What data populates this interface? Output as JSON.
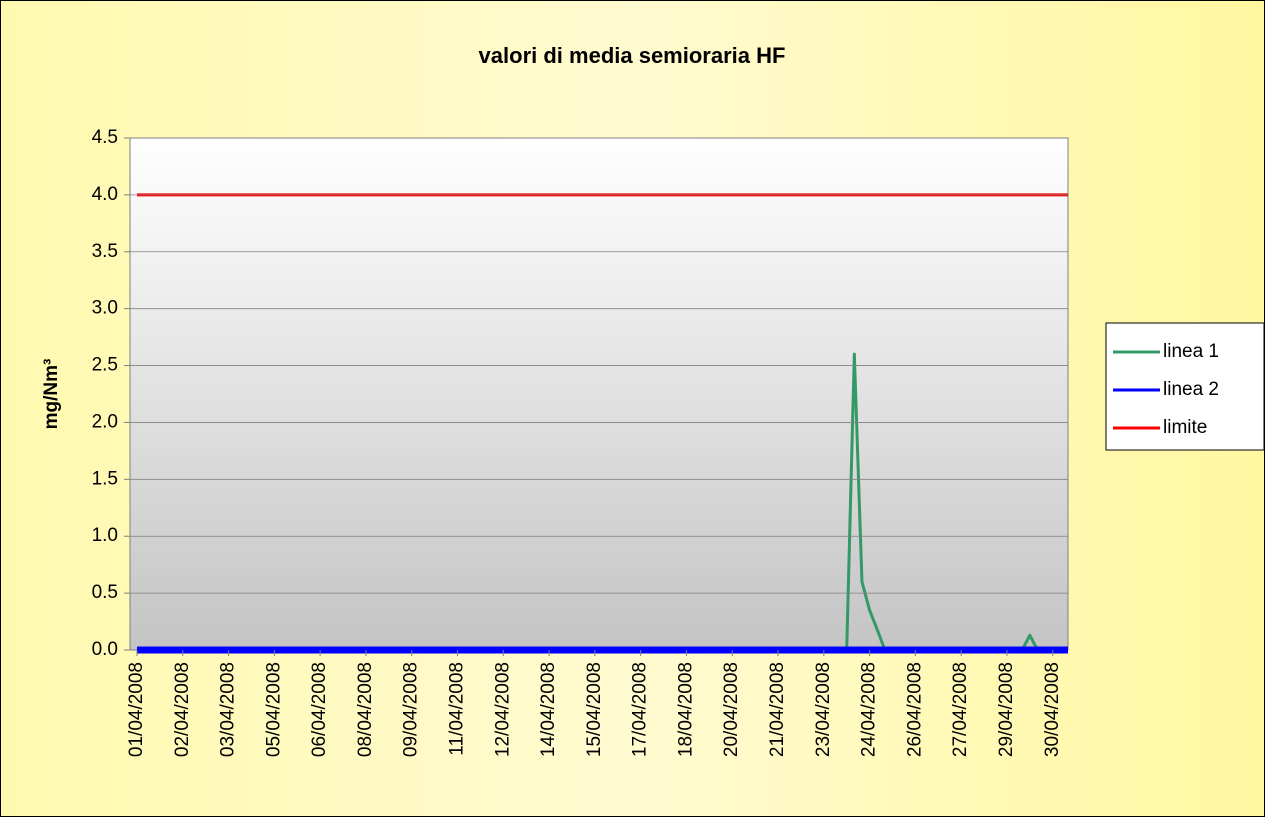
{
  "chart_data": {
    "type": "line",
    "title": "valori di media semioraria HF",
    "y_label": "mg/Nm³",
    "categories": [
      "01/04/2008",
      null,
      null,
      null,
      null,
      null,
      "02/04/2008",
      null,
      null,
      null,
      null,
      null,
      "03/04/2008",
      null,
      null,
      null,
      null,
      null,
      "05/04/2008",
      null,
      null,
      null,
      null,
      null,
      "06/04/2008",
      null,
      null,
      null,
      null,
      null,
      "08/04/2008",
      null,
      null,
      null,
      null,
      null,
      "09/04/2008",
      null,
      null,
      null,
      null,
      null,
      "11/04/2008",
      null,
      null,
      null,
      null,
      null,
      "12/04/2008",
      null,
      null,
      null,
      null,
      null,
      "14/04/2008",
      null,
      null,
      null,
      null,
      null,
      "15/04/2008",
      null,
      null,
      null,
      null,
      null,
      "17/04/2008",
      null,
      null,
      null,
      null,
      null,
      "18/04/2008",
      null,
      null,
      null,
      null,
      null,
      "20/04/2008",
      null,
      null,
      null,
      null,
      null,
      "21/04/2008",
      null,
      null,
      null,
      null,
      null,
      "23/04/2008",
      null,
      null,
      null,
      null,
      null,
      "24/04/2008",
      null,
      null,
      null,
      null,
      null,
      "26/04/2008",
      null,
      null,
      null,
      null,
      null,
      "27/04/2008",
      null,
      null,
      null,
      null,
      null,
      "29/04/2008",
      null,
      null,
      null,
      null,
      null,
      "30/04/2008",
      null,
      null
    ],
    "series": [
      {
        "name": "linea 1",
        "color": "#339966",
        "values": [
          0,
          0,
          0,
          0,
          0,
          0,
          0,
          0,
          0,
          0,
          0,
          0,
          0,
          0,
          0,
          0,
          0,
          0,
          0,
          0,
          0,
          0,
          0,
          0,
          0,
          0,
          0,
          0,
          0,
          0,
          0,
          0,
          0,
          0,
          0,
          0,
          0,
          0,
          0,
          0,
          0,
          0,
          0,
          0,
          0,
          0,
          0,
          0,
          0,
          0,
          0,
          0,
          0,
          0,
          0,
          0,
          0,
          0,
          0,
          0,
          0,
          0,
          0,
          0,
          0,
          0,
          0,
          0,
          0,
          0,
          0,
          0,
          0,
          0,
          0,
          0,
          0,
          0,
          0,
          0,
          0,
          0,
          0,
          0,
          0,
          0,
          0,
          0,
          0,
          0,
          0,
          0,
          0,
          0,
          2.6,
          0.6,
          0.35,
          0.18,
          0,
          0,
          0,
          0,
          0,
          0,
          0,
          0,
          0,
          0,
          0,
          0,
          0,
          0,
          0,
          0,
          0,
          0,
          0,
          0.13,
          0,
          0,
          0,
          0,
          0
        ]
      },
      {
        "name": "linea 2",
        "color": "#0000ff",
        "values": [
          0,
          0,
          0,
          0,
          0,
          0,
          0,
          0,
          0,
          0,
          0,
          0,
          0,
          0,
          0,
          0,
          0,
          0,
          0,
          0,
          0,
          0,
          0,
          0,
          0,
          0,
          0,
          0,
          0,
          0,
          0,
          0,
          0,
          0,
          0,
          0,
          0,
          0,
          0,
          0,
          0,
          0,
          0,
          0,
          0,
          0,
          0,
          0,
          0,
          0,
          0,
          0,
          0,
          0,
          0,
          0,
          0,
          0,
          0,
          0,
          0,
          0,
          0,
          0,
          0,
          0,
          0,
          0,
          0,
          0,
          0,
          0,
          0,
          0,
          0,
          0,
          0,
          0,
          0,
          0,
          0,
          0,
          0,
          0,
          0,
          0,
          0,
          0,
          0,
          0,
          0,
          0,
          0,
          0,
          0,
          0,
          0,
          0,
          0,
          0,
          0,
          0,
          0,
          0,
          0,
          0,
          0,
          0,
          0,
          0,
          0,
          0,
          0,
          0,
          0,
          0,
          0,
          0,
          0,
          0,
          0,
          0,
          0
        ]
      },
      {
        "name": "limite",
        "color": "#ff0000",
        "values": [
          4,
          4,
          4,
          4,
          4,
          4,
          4,
          4,
          4,
          4,
          4,
          4,
          4,
          4,
          4,
          4,
          4,
          4,
          4,
          4,
          4,
          4,
          4,
          4,
          4,
          4,
          4,
          4,
          4,
          4,
          4,
          4,
          4,
          4,
          4,
          4,
          4,
          4,
          4,
          4,
          4,
          4,
          4,
          4,
          4,
          4,
          4,
          4,
          4,
          4,
          4,
          4,
          4,
          4,
          4,
          4,
          4,
          4,
          4,
          4,
          4,
          4,
          4,
          4,
          4,
          4,
          4,
          4,
          4,
          4,
          4,
          4,
          4,
          4,
          4,
          4,
          4,
          4,
          4,
          4,
          4,
          4,
          4,
          4,
          4,
          4,
          4,
          4,
          4,
          4,
          4,
          4,
          4,
          4,
          4,
          4,
          4,
          4,
          4,
          4,
          4,
          4,
          4,
          4,
          4,
          4,
          4,
          4,
          4,
          4,
          4,
          4,
          4,
          4,
          4,
          4,
          4,
          4,
          4,
          4,
          4,
          4,
          4
        ]
      }
    ],
    "ylim": [
      0,
      4.5
    ],
    "yticks": [
      {
        "value": 0,
        "label": "0.0"
      },
      0.5,
      {
        "value": 1,
        "label": "1.0"
      },
      1.5,
      {
        "value": 2,
        "label": "2.0"
      },
      2.5,
      {
        "value": 3,
        "label": "3.0"
      },
      3.5,
      {
        "value": 4,
        "label": "4.0"
      },
      4.5
    ],
    "grid": true,
    "legend": "right"
  }
}
